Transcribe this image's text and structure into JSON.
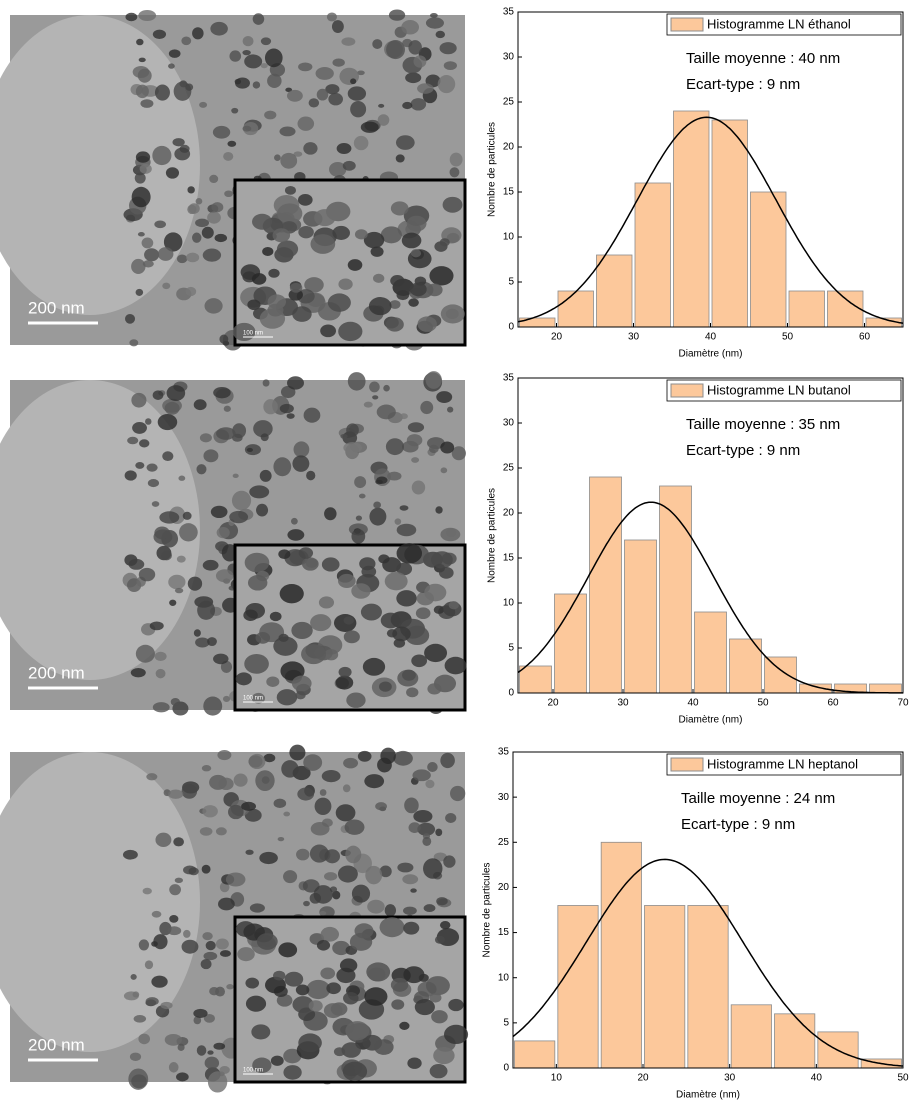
{
  "chart_data": [
    {
      "type": "histogram",
      "legend": "Histogramme LN éthanol",
      "annotations": [
        "Taille moyenne  : 40 nm",
        "Ecart-type : 9 nm"
      ],
      "xlabel": "Diamètre (nm)",
      "ylabel": "Nombre de particules",
      "bins": [
        15,
        20,
        25,
        30,
        35,
        40,
        45,
        50,
        55,
        60,
        65
      ],
      "values": [
        1,
        4,
        8,
        16,
        24,
        23,
        15,
        4,
        4,
        1
      ],
      "color": "#fcc89b",
      "fit": {
        "center": 39.5,
        "peak": 23.3,
        "sigma": 9
      },
      "xlim": [
        15,
        65
      ],
      "xticks": [
        20,
        30,
        40,
        50,
        60
      ],
      "ylim": [
        0,
        35
      ],
      "yticks": [
        0,
        5,
        10,
        15,
        20,
        25,
        30,
        35
      ]
    },
    {
      "type": "histogram",
      "legend": "Histogramme LN butanol",
      "annotations": [
        "Taille moyenne : 35 nm",
        "Ecart-type : 9 nm"
      ],
      "xlabel": "Diamètre (nm)",
      "ylabel": "Nombre de particules",
      "bins": [
        15,
        20,
        25,
        30,
        35,
        40,
        45,
        50,
        55,
        60,
        65,
        70
      ],
      "values": [
        3,
        11,
        24,
        17,
        23,
        9,
        6,
        4,
        1,
        1,
        1
      ],
      "color": "#fcc89b",
      "fit": {
        "center": 34,
        "peak": 21.2,
        "sigma": 9
      },
      "xlim": [
        15,
        70
      ],
      "xticks": [
        20,
        30,
        40,
        50,
        60,
        70
      ],
      "ylim": [
        0,
        35
      ],
      "yticks": [
        0,
        5,
        10,
        15,
        20,
        25,
        30,
        35
      ]
    },
    {
      "type": "histogram",
      "legend": "Histogramme LN heptanol",
      "annotations": [
        "Taille moyenne : 24 nm",
        "Ecart-type : 9 nm"
      ],
      "xlabel": "Diamètre (nm)",
      "ylabel": "Nombre de particules",
      "bins": [
        5,
        10,
        15,
        20,
        25,
        30,
        35,
        40,
        45,
        50
      ],
      "values": [
        3,
        18,
        25,
        18,
        18,
        7,
        6,
        4,
        1
      ],
      "color": "#fcc89b",
      "fit": {
        "center": 22.5,
        "peak": 23.1,
        "sigma": 9
      },
      "xlim": [
        5,
        50
      ],
      "xticks": [
        10,
        20,
        30,
        40,
        50
      ],
      "ylim": [
        0,
        35
      ],
      "yticks": [
        0,
        5,
        10,
        15,
        20,
        25,
        30,
        35
      ]
    }
  ],
  "images": [
    {
      "scale_bar": "200 nm",
      "inset_scale_bar": "100 nm"
    },
    {
      "scale_bar": "200 nm",
      "inset_scale_bar": "100 nm"
    },
    {
      "scale_bar": "200 nm",
      "inset_scale_bar": "100 nm"
    }
  ]
}
